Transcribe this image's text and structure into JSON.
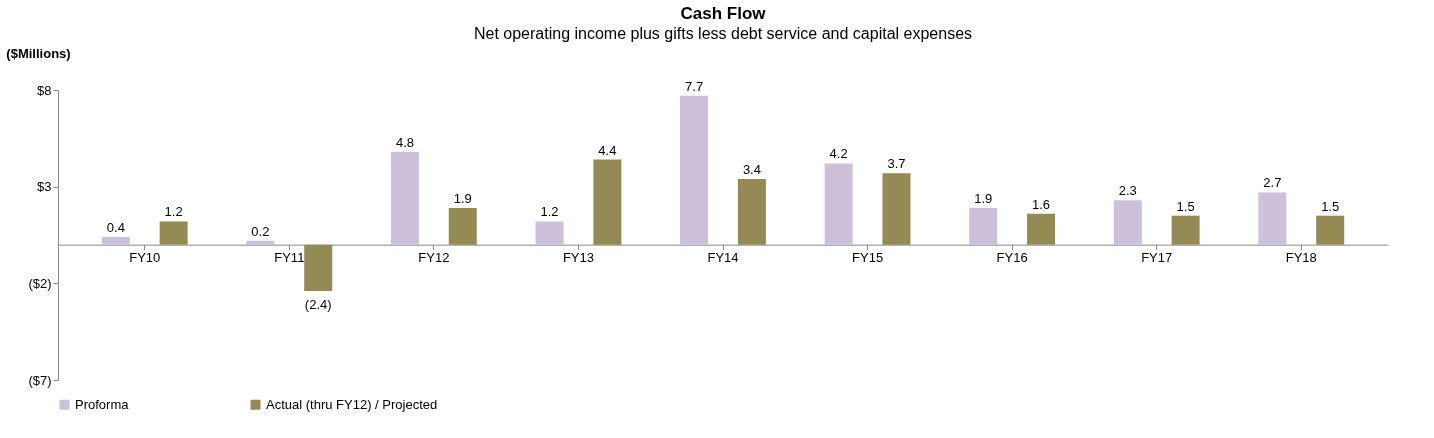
{
  "chart_data": {
    "type": "bar",
    "title": "Cash Flow",
    "subtitle": "Net operating income plus gifts less debt service and capital expenses",
    "ylabel": "($Millions)",
    "categories": [
      "FY10",
      "FY11",
      "FY12",
      "FY13",
      "FY14",
      "FY15",
      "FY16",
      "FY17",
      "FY18"
    ],
    "series": [
      {
        "name": "Proforma",
        "color": "#ccc0da",
        "values": [
          0.4,
          0.2,
          4.8,
          1.2,
          7.7,
          4.2,
          1.9,
          2.3,
          2.7
        ],
        "value_labels": [
          "0.4",
          "0.2",
          "4.8",
          "1.2",
          "7.7",
          "4.2",
          "1.9",
          "2.3",
          "2.7"
        ]
      },
      {
        "name": "Actual (thru FY12) / Projected",
        "color": "#948a54",
        "values": [
          1.2,
          -2.4,
          1.9,
          4.4,
          3.4,
          3.7,
          1.6,
          1.5,
          1.5
        ],
        "value_labels": [
          "1.2",
          "(2.4)",
          "1.9",
          "4.4",
          "3.4",
          "3.7",
          "1.6",
          "1.5",
          "1.5"
        ]
      }
    ],
    "ylim": [
      -7,
      8
    ],
    "yticks": [
      {
        "value": 8,
        "label": "$8"
      },
      {
        "value": 3,
        "label": "$3"
      },
      {
        "value": -2,
        "label": "($2)"
      },
      {
        "value": -7,
        "label": "($7)"
      }
    ],
    "grid": false,
    "legend": "bottom"
  }
}
